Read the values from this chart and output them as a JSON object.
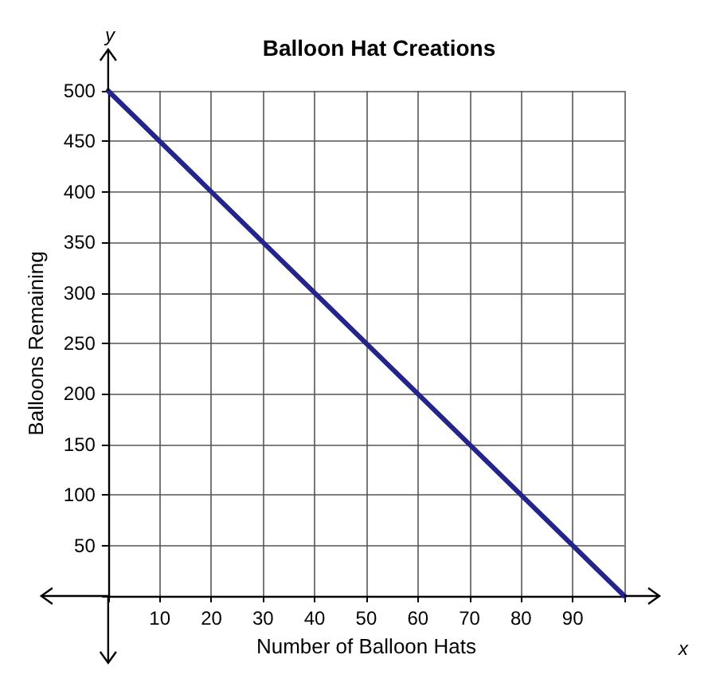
{
  "chart_data": {
    "type": "line",
    "title": "Balloon Hat Creations",
    "xlabel": "Number of Balloon Hats",
    "ylabel": "Balloons Remaining",
    "annotations": [
      "y",
      "x"
    ],
    "x": [
      0,
      100
    ],
    "series": [
      {
        "color": "#23258a",
        "values": [
          500,
          0
        ]
      }
    ],
    "xlim": [
      0,
      100
    ],
    "ylim": [
      0,
      500
    ],
    "xticks": [
      {
        "value": 0,
        "label": null
      },
      10,
      20,
      30,
      40,
      50,
      60,
      70,
      80,
      90,
      {
        "value": 100,
        "label": null
      }
    ],
    "yticks": [
      {
        "value": 0,
        "label": null
      },
      50,
      100,
      150,
      200,
      250,
      300,
      350,
      400,
      450,
      500
    ],
    "grid": true,
    "marker": "none",
    "line_style": "solid"
  }
}
